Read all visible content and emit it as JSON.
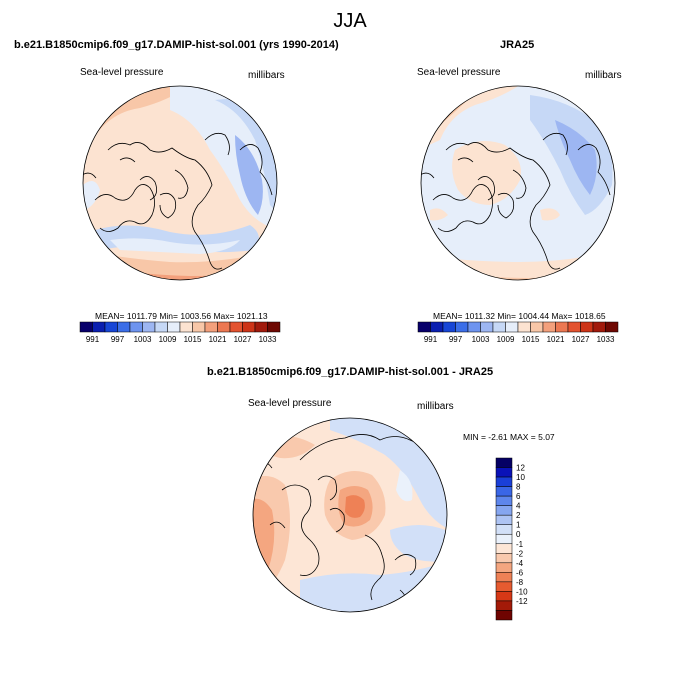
{
  "figure": {
    "title": "JJA",
    "panel_left": {
      "header": "b.e21.B1850cmip6.f09_g17.DAMIP-hist-sol.001 (yrs 1990-2014)",
      "field": "Sea-level pressure",
      "units": "millibars",
      "stats": "MEAN= 1011.79  Min= 1003.56  Max= 1021.13"
    },
    "panel_right": {
      "header": "JRA25",
      "field": "Sea-level pressure",
      "units": "millibars",
      "stats": "MEAN= 1011.32  Min= 1004.44  Max= 1018.65"
    },
    "panel_diff": {
      "header": "b.e21.B1850cmip6.f09_g17.DAMIP-hist-sol.001 - JRA25",
      "field": "Sea-level pressure",
      "units": "millibars",
      "stats": "MIN =  -2.61 MAX =   5.07"
    }
  },
  "abs_colorbar": {
    "colors": [
      "#08006b",
      "#0a1fb0",
      "#1746d6",
      "#3b6ee8",
      "#6e94ef",
      "#9db6f2",
      "#c6d8f6",
      "#e6eefa",
      "#fce3d1",
      "#f8c7a8",
      "#f3a07c",
      "#ec7852",
      "#e35330",
      "#cd3418",
      "#a11a0c",
      "#6e0802"
    ],
    "tick_labels": [
      "991",
      "997",
      "1003",
      "1009",
      "1015",
      "1021",
      "1027",
      "1033"
    ]
  },
  "diff_colorbar": {
    "colors": [
      "#050064",
      "#0a12b8",
      "#1a3fd8",
      "#3a66e6",
      "#5e86ec",
      "#86a6f0",
      "#aec4f4",
      "#d2e0f8",
      "#eaf1fb",
      "#fde6d6",
      "#f9c9ad",
      "#f4a680",
      "#ee8156",
      "#e65b30",
      "#d63816",
      "#a31a08",
      "#6f0401"
    ],
    "tick_labels": [
      "12",
      "10",
      "8",
      "6",
      "4",
      "2",
      "1",
      "0",
      "-1",
      "-2",
      "-4",
      "-6",
      "-8",
      "-10",
      "-12"
    ]
  }
}
